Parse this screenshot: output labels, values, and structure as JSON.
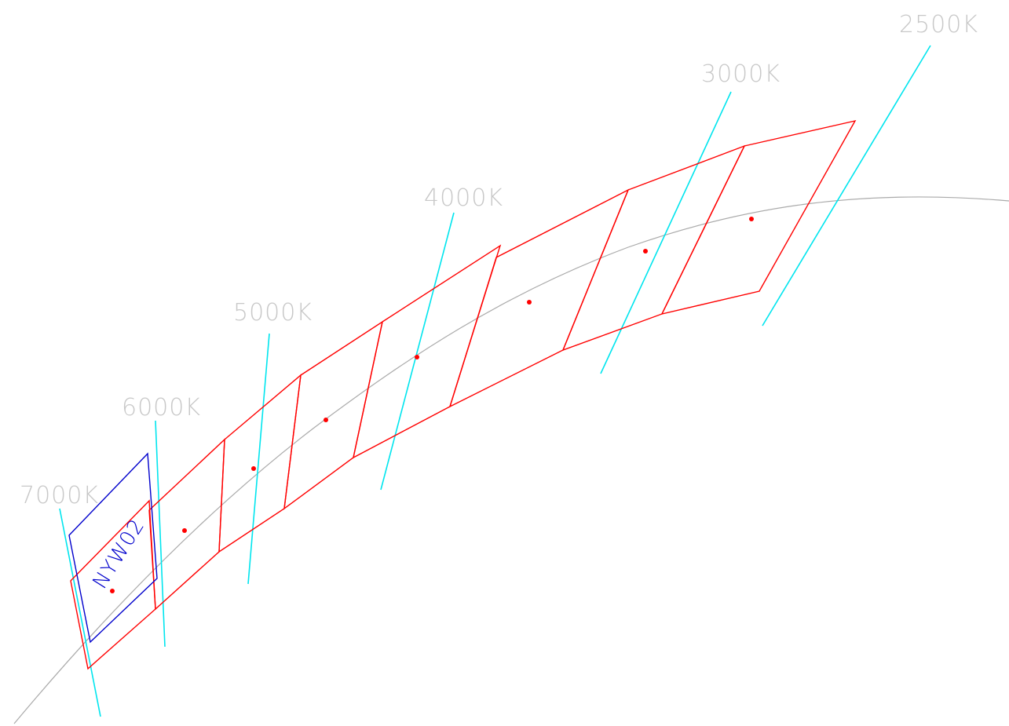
{
  "colors": {
    "background": "#ffffff",
    "locus": "#aaaaaa",
    "isotherm": "#00e5ee",
    "isotherm_label": "#c8c8c8",
    "bin_outline": "#ff0000",
    "bin_center": "#ff0000",
    "highlight_outline": "#0000cc",
    "highlight_label": "#0000cc"
  },
  "isotherms": [
    {
      "id": "cct-2500",
      "label": "2500K"
    },
    {
      "id": "cct-3000",
      "label": "3000K"
    },
    {
      "id": "cct-4000",
      "label": "4000K"
    },
    {
      "id": "cct-5000",
      "label": "5000K"
    },
    {
      "id": "cct-6000",
      "label": "6000K"
    },
    {
      "id": "cct-7000",
      "label": "7000K"
    }
  ],
  "highlighted_bin": {
    "label": "NYW02"
  },
  "bins_count_note": ""
}
